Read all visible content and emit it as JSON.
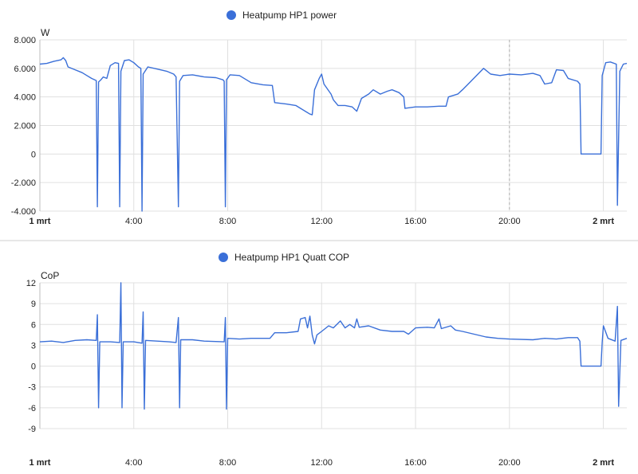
{
  "colors": {
    "series": "#3a6fd8",
    "grid": "#e0e0e0",
    "divider": "#cfcfcf",
    "now_line": "#b0b0b0",
    "text": "#212121"
  },
  "chart_data": [
    {
      "type": "line",
      "title": "",
      "series": [
        {
          "name": "Heatpump HP1 power"
        }
      ],
      "ylabel": "W",
      "ylim": [
        -4000,
        8000
      ],
      "yticks": [
        8000,
        6000,
        4000,
        2000,
        0,
        -2000,
        -4000
      ],
      "ytick_labels": [
        "8.000",
        "6.000",
        "4.000",
        "2.000",
        "0",
        "-2.000",
        "-4.000"
      ],
      "xlim": [
        0,
        25
      ],
      "xticks": [
        0,
        4,
        8,
        12,
        16,
        20,
        24
      ],
      "xtick_labels": [
        "1 mrt",
        "4:00",
        "8:00",
        "12:00",
        "16:00",
        "20:00",
        "2 mrt"
      ],
      "xtick_bold": [
        true,
        false,
        false,
        false,
        false,
        false,
        true
      ],
      "x_unit": "hour",
      "points": [
        [
          0.0,
          6300
        ],
        [
          0.3,
          6350
        ],
        [
          0.6,
          6500
        ],
        [
          0.9,
          6600
        ],
        [
          1.0,
          6750
        ],
        [
          1.1,
          6550
        ],
        [
          1.2,
          6100
        ],
        [
          1.5,
          5900
        ],
        [
          1.8,
          5700
        ],
        [
          2.0,
          5500
        ],
        [
          2.2,
          5300
        ],
        [
          2.4,
          5150
        ],
        [
          2.45,
          -3700
        ],
        [
          2.5,
          5050
        ],
        [
          2.6,
          5200
        ],
        [
          2.7,
          5400
        ],
        [
          2.85,
          5300
        ],
        [
          3.0,
          6200
        ],
        [
          3.2,
          6400
        ],
        [
          3.35,
          6350
        ],
        [
          3.4,
          -3700
        ],
        [
          3.45,
          5800
        ],
        [
          3.6,
          6550
        ],
        [
          3.8,
          6600
        ],
        [
          4.0,
          6400
        ],
        [
          4.2,
          6100
        ],
        [
          4.3,
          6000
        ],
        [
          4.35,
          -4000
        ],
        [
          4.4,
          5600
        ],
        [
          4.6,
          6100
        ],
        [
          5.0,
          5950
        ],
        [
          5.4,
          5800
        ],
        [
          5.7,
          5600
        ],
        [
          5.8,
          5400
        ],
        [
          5.9,
          -3700
        ],
        [
          5.95,
          5100
        ],
        [
          6.1,
          5500
        ],
        [
          6.5,
          5550
        ],
        [
          7.0,
          5400
        ],
        [
          7.5,
          5350
        ],
        [
          7.8,
          5200
        ],
        [
          7.85,
          5100
        ],
        [
          7.9,
          -3700
        ],
        [
          7.95,
          5200
        ],
        [
          8.1,
          5550
        ],
        [
          8.5,
          5500
        ],
        [
          9.0,
          5000
        ],
        [
          9.5,
          4850
        ],
        [
          9.9,
          4800
        ],
        [
          10.0,
          3600
        ],
        [
          10.5,
          3500
        ],
        [
          10.9,
          3400
        ],
        [
          11.1,
          3200
        ],
        [
          11.3,
          3000
        ],
        [
          11.5,
          2800
        ],
        [
          11.6,
          2750
        ],
        [
          11.7,
          4500
        ],
        [
          11.9,
          5300
        ],
        [
          12.0,
          5600
        ],
        [
          12.1,
          4900
        ],
        [
          12.4,
          4200
        ],
        [
          12.5,
          3800
        ],
        [
          12.7,
          3400
        ],
        [
          13.0,
          3400
        ],
        [
          13.3,
          3300
        ],
        [
          13.5,
          3000
        ],
        [
          13.7,
          3900
        ],
        [
          14.0,
          4200
        ],
        [
          14.2,
          4500
        ],
        [
          14.5,
          4200
        ],
        [
          14.8,
          4400
        ],
        [
          15.0,
          4500
        ],
        [
          15.3,
          4300
        ],
        [
          15.5,
          4000
        ],
        [
          15.55,
          3200
        ],
        [
          16.0,
          3300
        ],
        [
          16.5,
          3300
        ],
        [
          17.0,
          3350
        ],
        [
          17.3,
          3350
        ],
        [
          17.4,
          4000
        ],
        [
          17.8,
          4200
        ],
        [
          18.0,
          4500
        ],
        [
          18.3,
          5000
        ],
        [
          18.6,
          5500
        ],
        [
          18.9,
          6000
        ],
        [
          19.2,
          5600
        ],
        [
          19.6,
          5500
        ],
        [
          20.0,
          5600
        ],
        [
          20.5,
          5550
        ],
        [
          21.0,
          5650
        ],
        [
          21.3,
          5500
        ],
        [
          21.5,
          4900
        ],
        [
          21.8,
          5000
        ],
        [
          22.0,
          5900
        ],
        [
          22.3,
          5850
        ],
        [
          22.5,
          5300
        ],
        [
          22.9,
          5100
        ],
        [
          23.0,
          4900
        ],
        [
          23.05,
          0
        ],
        [
          23.9,
          0
        ],
        [
          23.95,
          5500
        ],
        [
          24.1,
          6400
        ],
        [
          24.3,
          6450
        ],
        [
          24.55,
          6300
        ],
        [
          24.6,
          -3600
        ],
        [
          24.7,
          5800
        ],
        [
          24.85,
          6300
        ],
        [
          25.0,
          6350
        ]
      ]
    },
    {
      "type": "line",
      "title": "",
      "series": [
        {
          "name": "Heatpump HP1 Quatt COP"
        }
      ],
      "ylabel": "CoP",
      "ylim": [
        -9,
        12
      ],
      "yticks": [
        12,
        9,
        6,
        3,
        0,
        -3,
        -6,
        -9
      ],
      "ytick_labels": [
        "12",
        "9",
        "6",
        "3",
        "0",
        "-3",
        "-6",
        "-9"
      ],
      "xlim": [
        0,
        25
      ],
      "xticks": [
        0,
        4,
        8,
        12,
        16,
        20,
        24
      ],
      "xtick_labels": [
        "1 mrt",
        "4:00",
        "8:00",
        "12:00",
        "16:00",
        "20:00",
        "2 mrt"
      ],
      "xtick_bold": [
        true,
        false,
        false,
        false,
        false,
        false,
        true
      ],
      "x_unit": "hour",
      "points": [
        [
          0.0,
          3.5
        ],
        [
          0.5,
          3.6
        ],
        [
          1.0,
          3.4
        ],
        [
          1.5,
          3.7
        ],
        [
          2.0,
          3.8
        ],
        [
          2.4,
          3.7
        ],
        [
          2.45,
          7.4
        ],
        [
          2.5,
          -6.0
        ],
        [
          2.55,
          3.5
        ],
        [
          3.0,
          3.5
        ],
        [
          3.4,
          3.4
        ],
        [
          3.45,
          12.0
        ],
        [
          3.5,
          -6.0
        ],
        [
          3.55,
          3.5
        ],
        [
          4.0,
          3.5
        ],
        [
          4.35,
          3.3
        ],
        [
          4.4,
          7.8
        ],
        [
          4.45,
          -6.2
        ],
        [
          4.5,
          3.7
        ],
        [
          5.0,
          3.6
        ],
        [
          5.5,
          3.5
        ],
        [
          5.8,
          3.4
        ],
        [
          5.9,
          7.0
        ],
        [
          5.95,
          -6.0
        ],
        [
          6.0,
          3.8
        ],
        [
          6.5,
          3.8
        ],
        [
          7.0,
          3.6
        ],
        [
          7.85,
          3.5
        ],
        [
          7.9,
          7.0
        ],
        [
          7.95,
          -6.2
        ],
        [
          8.0,
          4.0
        ],
        [
          8.5,
          3.9
        ],
        [
          9.0,
          4.0
        ],
        [
          9.8,
          4.0
        ],
        [
          10.0,
          4.8
        ],
        [
          10.5,
          4.8
        ],
        [
          11.0,
          5.0
        ],
        [
          11.1,
          6.8
        ],
        [
          11.3,
          7.0
        ],
        [
          11.4,
          5.5
        ],
        [
          11.5,
          7.2
        ],
        [
          11.6,
          4.5
        ],
        [
          11.7,
          3.2
        ],
        [
          11.8,
          4.5
        ],
        [
          12.0,
          5.0
        ],
        [
          12.3,
          5.8
        ],
        [
          12.5,
          5.5
        ],
        [
          12.8,
          6.5
        ],
        [
          13.0,
          5.5
        ],
        [
          13.2,
          6.0
        ],
        [
          13.4,
          5.5
        ],
        [
          13.5,
          6.8
        ],
        [
          13.6,
          5.6
        ],
        [
          14.0,
          5.8
        ],
        [
          14.5,
          5.2
        ],
        [
          15.0,
          5.0
        ],
        [
          15.5,
          5.0
        ],
        [
          15.7,
          4.6
        ],
        [
          16.0,
          5.5
        ],
        [
          16.5,
          5.6
        ],
        [
          16.8,
          5.5
        ],
        [
          17.0,
          6.8
        ],
        [
          17.1,
          5.4
        ],
        [
          17.5,
          5.8
        ],
        [
          17.7,
          5.2
        ],
        [
          18.0,
          5.0
        ],
        [
          18.5,
          4.6
        ],
        [
          19.0,
          4.2
        ],
        [
          19.5,
          4.0
        ],
        [
          20.0,
          3.9
        ],
        [
          21.0,
          3.8
        ],
        [
          21.5,
          4.0
        ],
        [
          22.0,
          3.9
        ],
        [
          22.5,
          4.1
        ],
        [
          22.9,
          4.1
        ],
        [
          23.0,
          3.6
        ],
        [
          23.05,
          0
        ],
        [
          23.9,
          0
        ],
        [
          23.95,
          3.4
        ],
        [
          24.0,
          5.8
        ],
        [
          24.2,
          4.0
        ],
        [
          24.5,
          3.6
        ],
        [
          24.6,
          8.6
        ],
        [
          24.65,
          -5.8
        ],
        [
          24.75,
          3.7
        ],
        [
          25.0,
          4.0
        ]
      ]
    }
  ]
}
